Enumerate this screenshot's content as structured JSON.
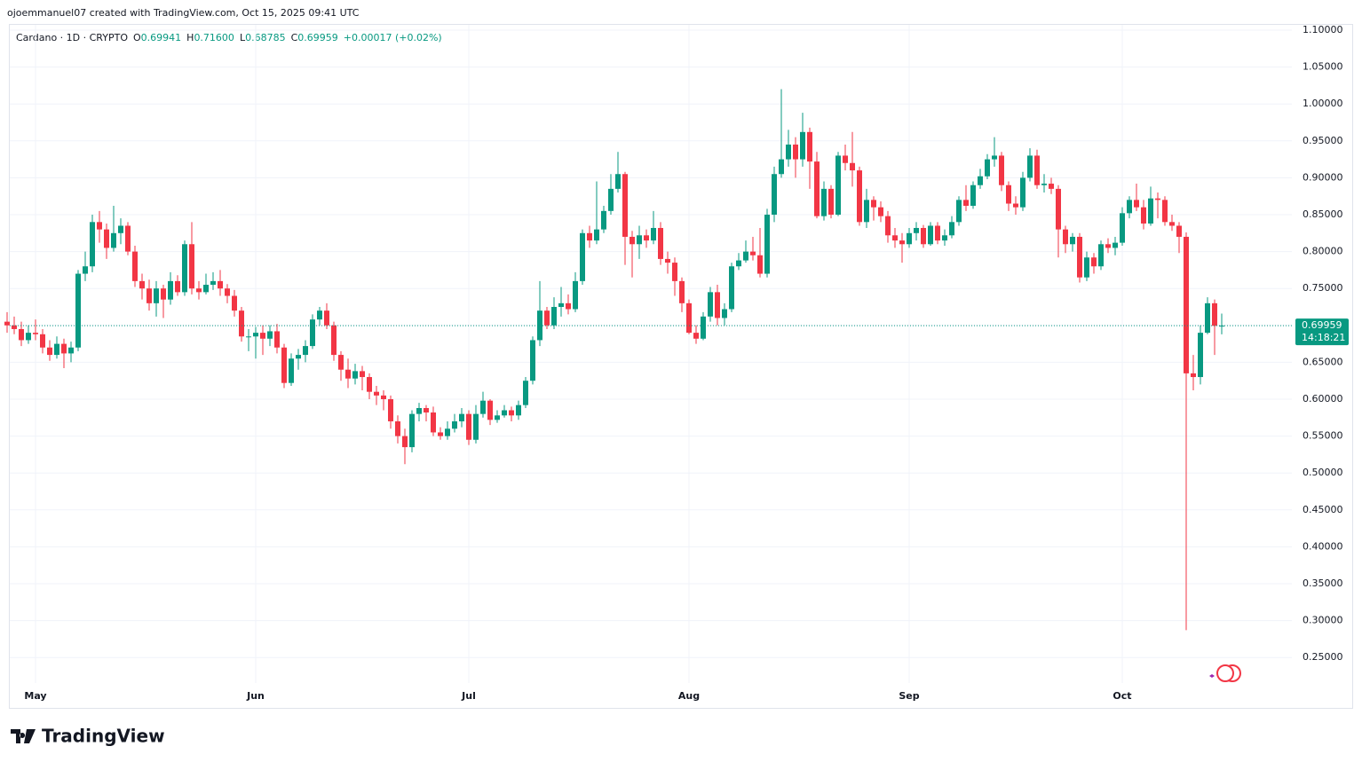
{
  "attribution": "ojoemmanuel07 created with TradingView.com, Oct 15, 2025 09:41 UTC",
  "logo": "TradingView",
  "chart_data": {
    "type": "candlestick",
    "title": "Cardano · 1D · CRYPTO",
    "ohlc_header": {
      "labels": [
        "O",
        "H",
        "L",
        "C"
      ],
      "values": [
        "0.69941",
        "0.71600",
        "0.68785",
        "0.69959"
      ],
      "change": "+0.00017 (+0.02%)"
    },
    "up_color": "#089981",
    "down_color": "#f23645",
    "grid": true,
    "ylim": [
      0.2154,
      1.1084
    ],
    "yticks": [
      {
        "value": 0.25,
        "label": "0.25000"
      },
      {
        "value": 0.3,
        "label": "0.30000"
      },
      {
        "value": 0.35,
        "label": "0.35000"
      },
      {
        "value": 0.4,
        "label": "0.40000"
      },
      {
        "value": 0.45,
        "label": "0.45000"
      },
      {
        "value": 0.5,
        "label": "0.50000"
      },
      {
        "value": 0.55,
        "label": "0.55000"
      },
      {
        "value": 0.6,
        "label": "0.60000"
      },
      {
        "value": 0.65,
        "label": "0.65000"
      },
      {
        "value": 0.7,
        "label": "0.70000"
      },
      {
        "value": 0.75,
        "label": "0.75000"
      },
      {
        "value": 0.8,
        "label": "0.80000"
      },
      {
        "value": 0.85,
        "label": "0.85000"
      },
      {
        "value": 0.9,
        "label": "0.90000"
      },
      {
        "value": 0.95,
        "label": "0.95000"
      },
      {
        "value": 1.0,
        "label": "1.00000"
      },
      {
        "value": 1.05,
        "label": "1.05000"
      },
      {
        "value": 1.1,
        "label": "1.10000"
      }
    ],
    "last_price": {
      "value": 0.69959,
      "countdown": "14:18:21"
    },
    "categories": [
      null,
      null,
      null,
      null,
      "May",
      null,
      null,
      null,
      null,
      null,
      null,
      null,
      null,
      null,
      null,
      null,
      null,
      null,
      null,
      null,
      null,
      null,
      null,
      null,
      null,
      null,
      null,
      null,
      null,
      null,
      null,
      null,
      null,
      null,
      null,
      "Jun",
      null,
      null,
      null,
      null,
      null,
      null,
      null,
      null,
      null,
      null,
      null,
      null,
      null,
      null,
      null,
      null,
      null,
      null,
      null,
      null,
      null,
      null,
      null,
      null,
      null,
      null,
      null,
      null,
      null,
      "Jul",
      null,
      null,
      null,
      null,
      null,
      null,
      null,
      null,
      null,
      null,
      null,
      null,
      null,
      null,
      null,
      null,
      null,
      null,
      null,
      null,
      null,
      null,
      null,
      null,
      null,
      null,
      null,
      null,
      null,
      null,
      "Aug",
      null,
      null,
      null,
      null,
      null,
      null,
      null,
      null,
      null,
      null,
      null,
      null,
      null,
      null,
      null,
      null,
      null,
      null,
      null,
      null,
      null,
      null,
      null,
      null,
      null,
      null,
      null,
      null,
      null,
      null,
      "Sep",
      null,
      null,
      null,
      null,
      null,
      null,
      null,
      null,
      null,
      null,
      null,
      null,
      null,
      null,
      null,
      null,
      null,
      null,
      null,
      null,
      null,
      null,
      null,
      null,
      null,
      null,
      null,
      null,
      null,
      "Oct",
      null,
      null,
      null,
      null,
      null,
      null,
      null,
      null,
      null,
      null,
      null,
      null,
      null,
      null
    ],
    "open": [
      0.705,
      0.7,
      0.695,
      0.68,
      0.69,
      0.688,
      0.67,
      0.66,
      0.675,
      0.662,
      0.67,
      0.77,
      0.78,
      0.84,
      0.83,
      0.805,
      0.825,
      0.835,
      0.8,
      0.76,
      0.75,
      0.73,
      0.75,
      0.735,
      0.76,
      0.745,
      0.81,
      0.75,
      0.745,
      0.755,
      0.76,
      0.75,
      0.74,
      0.72,
      0.685,
      0.685,
      0.69,
      0.682,
      0.692,
      0.67,
      0.622,
      0.655,
      0.66,
      0.672,
      0.708,
      0.72,
      0.7,
      0.66,
      0.64,
      0.628,
      0.638,
      0.63,
      0.61,
      0.605,
      0.6,
      0.57,
      0.55,
      0.535,
      0.58,
      0.588,
      0.582,
      0.555,
      0.55,
      0.56,
      0.57,
      0.58,
      0.545,
      0.58,
      0.598,
      0.572,
      0.578,
      0.585,
      0.578,
      0.592,
      0.625,
      0.68,
      0.72,
      0.7,
      0.725,
      0.73,
      0.722,
      0.76,
      0.825,
      0.815,
      0.83,
      0.855,
      0.885,
      0.905,
      0.82,
      0.81,
      0.822,
      0.815,
      0.832,
      0.79,
      0.785,
      0.76,
      0.73,
      0.69,
      0.682,
      0.712,
      0.745,
      0.71,
      0.722,
      0.78,
      0.788,
      0.8,
      0.795,
      0.77,
      0.85,
      0.905,
      0.925,
      0.945,
      0.925,
      0.962,
      0.922,
      0.848,
      0.885,
      0.85,
      0.93,
      0.92,
      0.91,
      0.84,
      0.87,
      0.86,
      0.848,
      0.822,
      0.815,
      0.81,
      0.825,
      0.832,
      0.81,
      0.835,
      0.815,
      0.822,
      0.84,
      0.87,
      0.862,
      0.89,
      0.902,
      0.925,
      0.93,
      0.89,
      0.865,
      0.86,
      0.9,
      0.93,
      0.89,
      0.892,
      0.885,
      0.83,
      0.81,
      0.82,
      0.765,
      0.792,
      0.78,
      0.81,
      0.805,
      0.812,
      0.852,
      0.87,
      0.86,
      0.838,
      0.872,
      0.87,
      0.84,
      0.835,
      0.82,
      0.635,
      0.63,
      0.69,
      0.73,
      0.69941
    ],
    "high": [
      0.718,
      0.712,
      0.705,
      0.7,
      0.708,
      0.695,
      0.68,
      0.685,
      0.682,
      0.678,
      0.775,
      0.8,
      0.85,
      0.855,
      0.838,
      0.862,
      0.845,
      0.84,
      0.808,
      0.77,
      0.762,
      0.76,
      0.755,
      0.772,
      0.768,
      0.815,
      0.84,
      0.76,
      0.77,
      0.772,
      0.775,
      0.756,
      0.748,
      0.725,
      0.695,
      0.698,
      0.7,
      0.7,
      0.702,
      0.675,
      0.662,
      0.668,
      0.68,
      0.715,
      0.725,
      0.73,
      0.705,
      0.665,
      0.655,
      0.648,
      0.645,
      0.635,
      0.618,
      0.612,
      0.605,
      0.578,
      0.56,
      0.585,
      0.595,
      0.592,
      0.59,
      0.562,
      0.57,
      0.58,
      0.588,
      0.585,
      0.592,
      0.61,
      0.6,
      0.585,
      0.592,
      0.59,
      0.598,
      0.63,
      0.685,
      0.76,
      0.725,
      0.738,
      0.752,
      0.742,
      0.772,
      0.83,
      0.835,
      0.895,
      0.862,
      0.905,
      0.935,
      0.908,
      0.828,
      0.835,
      0.83,
      0.855,
      0.84,
      0.8,
      0.792,
      0.765,
      0.735,
      0.7,
      0.718,
      0.752,
      0.755,
      0.73,
      0.785,
      0.798,
      0.815,
      0.82,
      0.832,
      0.858,
      0.915,
      1.02,
      0.965,
      0.955,
      0.988,
      0.968,
      0.935,
      0.895,
      0.89,
      0.935,
      0.945,
      0.962,
      0.915,
      0.885,
      0.875,
      0.868,
      0.855,
      0.832,
      0.825,
      0.832,
      0.84,
      0.836,
      0.84,
      0.84,
      0.83,
      0.848,
      0.875,
      0.89,
      0.895,
      0.912,
      0.932,
      0.955,
      0.935,
      0.895,
      0.875,
      0.908,
      0.94,
      0.938,
      0.905,
      0.9,
      0.89,
      0.835,
      0.825,
      0.825,
      0.8,
      0.798,
      0.815,
      0.818,
      0.82,
      0.86,
      0.875,
      0.892,
      0.87,
      0.888,
      0.88,
      0.875,
      0.85,
      0.84,
      0.826,
      0.66,
      0.7,
      0.738,
      0.735,
      0.716
    ],
    "low": [
      0.69,
      0.688,
      0.672,
      0.675,
      0.68,
      0.662,
      0.652,
      0.655,
      0.642,
      0.65,
      0.665,
      0.76,
      0.772,
      0.812,
      0.79,
      0.8,
      0.81,
      0.795,
      0.752,
      0.735,
      0.72,
      0.712,
      0.71,
      0.728,
      0.74,
      0.74,
      0.742,
      0.735,
      0.742,
      0.748,
      0.74,
      0.73,
      0.712,
      0.678,
      0.665,
      0.655,
      0.66,
      0.672,
      0.662,
      0.615,
      0.618,
      0.64,
      0.65,
      0.668,
      0.7,
      0.695,
      0.652,
      0.625,
      0.615,
      0.62,
      0.612,
      0.6,
      0.592,
      0.585,
      0.56,
      0.54,
      0.512,
      0.528,
      0.57,
      0.57,
      0.55,
      0.545,
      0.545,
      0.555,
      0.562,
      0.538,
      0.54,
      0.575,
      0.565,
      0.568,
      0.575,
      0.57,
      0.572,
      0.588,
      0.62,
      0.672,
      0.695,
      0.695,
      0.712,
      0.715,
      0.718,
      0.755,
      0.805,
      0.81,
      0.825,
      0.85,
      0.88,
      0.782,
      0.765,
      0.79,
      0.805,
      0.81,
      0.782,
      0.77,
      0.74,
      0.718,
      0.688,
      0.675,
      0.68,
      0.705,
      0.7,
      0.7,
      0.718,
      0.775,
      0.785,
      0.788,
      0.765,
      0.765,
      0.84,
      0.9,
      0.915,
      0.9,
      0.915,
      0.885,
      0.845,
      0.842,
      0.845,
      0.848,
      0.91,
      0.888,
      0.835,
      0.832,
      0.842,
      0.84,
      0.812,
      0.805,
      0.785,
      0.805,
      0.815,
      0.805,
      0.808,
      0.81,
      0.808,
      0.818,
      0.835,
      0.855,
      0.858,
      0.885,
      0.898,
      0.915,
      0.882,
      0.855,
      0.85,
      0.855,
      0.895,
      0.885,
      0.88,
      0.878,
      0.792,
      0.798,
      0.8,
      0.758,
      0.76,
      0.77,
      0.775,
      0.798,
      0.795,
      0.808,
      0.845,
      0.855,
      0.83,
      0.835,
      0.845,
      0.835,
      0.828,
      0.798,
      0.287,
      0.612,
      0.62,
      0.688,
      0.66,
      0.68785
    ],
    "close": [
      0.7,
      0.695,
      0.68,
      0.69,
      0.688,
      0.67,
      0.66,
      0.675,
      0.662,
      0.67,
      0.77,
      0.78,
      0.84,
      0.83,
      0.805,
      0.825,
      0.835,
      0.8,
      0.76,
      0.75,
      0.73,
      0.75,
      0.735,
      0.76,
      0.745,
      0.81,
      0.75,
      0.745,
      0.755,
      0.76,
      0.75,
      0.74,
      0.72,
      0.685,
      0.685,
      0.69,
      0.682,
      0.692,
      0.67,
      0.622,
      0.655,
      0.66,
      0.672,
      0.708,
      0.72,
      0.7,
      0.66,
      0.64,
      0.628,
      0.638,
      0.63,
      0.61,
      0.605,
      0.6,
      0.57,
      0.55,
      0.535,
      0.58,
      0.588,
      0.582,
      0.555,
      0.55,
      0.56,
      0.57,
      0.58,
      0.545,
      0.58,
      0.598,
      0.572,
      0.578,
      0.585,
      0.578,
      0.592,
      0.625,
      0.68,
      0.72,
      0.7,
      0.725,
      0.73,
      0.722,
      0.76,
      0.825,
      0.815,
      0.83,
      0.855,
      0.885,
      0.905,
      0.82,
      0.81,
      0.822,
      0.815,
      0.832,
      0.79,
      0.785,
      0.76,
      0.73,
      0.69,
      0.682,
      0.712,
      0.745,
      0.71,
      0.722,
      0.78,
      0.788,
      0.8,
      0.795,
      0.77,
      0.85,
      0.905,
      0.925,
      0.945,
      0.925,
      0.962,
      0.922,
      0.848,
      0.885,
      0.85,
      0.93,
      0.92,
      0.91,
      0.84,
      0.87,
      0.86,
      0.848,
      0.822,
      0.815,
      0.81,
      0.825,
      0.832,
      0.81,
      0.835,
      0.815,
      0.822,
      0.84,
      0.87,
      0.862,
      0.89,
      0.902,
      0.925,
      0.93,
      0.89,
      0.865,
      0.86,
      0.9,
      0.93,
      0.89,
      0.892,
      0.885,
      0.83,
      0.81,
      0.82,
      0.765,
      0.792,
      0.78,
      0.81,
      0.805,
      0.812,
      0.852,
      0.87,
      0.86,
      0.838,
      0.872,
      0.87,
      0.84,
      0.835,
      0.82,
      0.635,
      0.63,
      0.69,
      0.73,
      0.69941,
      0.69959
    ]
  }
}
